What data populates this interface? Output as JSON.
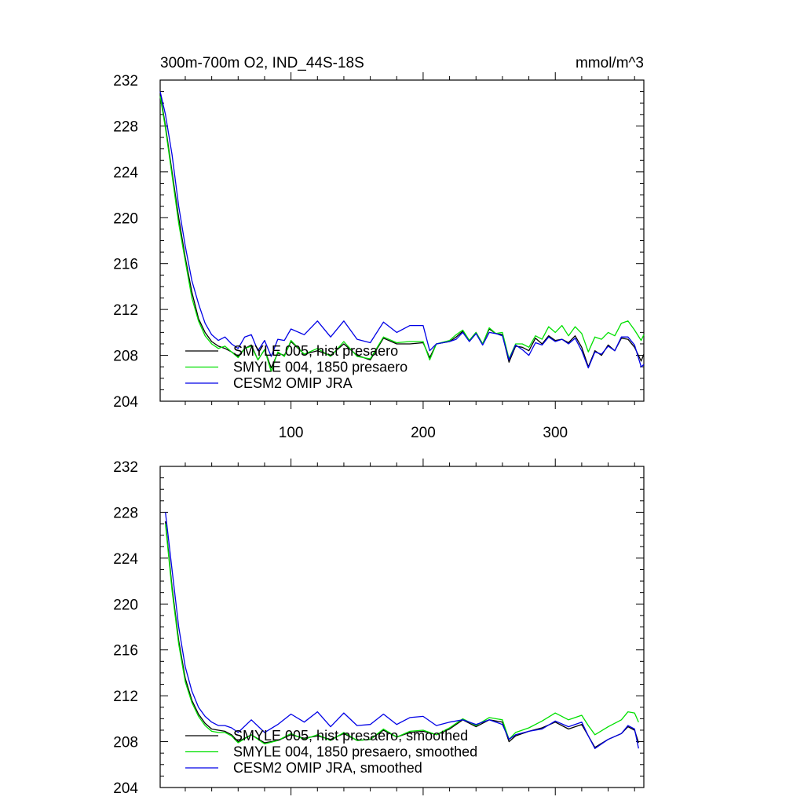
{
  "chart_data": [
    {
      "type": "line",
      "title": "300m-700m O2, IND_44S-18S",
      "units": "mmol/m^3",
      "xlabel": "",
      "ylabel": "",
      "xlim": [
        1,
        367
      ],
      "ylim": [
        204,
        232
      ],
      "x_ticks": [
        100,
        200,
        300
      ],
      "x_tick_labels": [
        "100",
        "200",
        "300"
      ],
      "y_ticks": [
        204,
        208,
        212,
        216,
        220,
        224,
        228,
        232
      ],
      "y_tick_labels": [
        "204",
        "208",
        "212",
        "216",
        "220",
        "224",
        "228",
        "232"
      ],
      "legend_position": "bottom-left",
      "series": [
        {
          "name": "SMYLE 005, hist presaero",
          "color": "#000000",
          "x": [
            1,
            5,
            10,
            15,
            20,
            25,
            30,
            35,
            40,
            45,
            50,
            55,
            60,
            65,
            70,
            75,
            80,
            85,
            90,
            95,
            100,
            110,
            120,
            130,
            140,
            150,
            160,
            170,
            180,
            190,
            200,
            205,
            210,
            220,
            225,
            230,
            235,
            240,
            245,
            250,
            255,
            260,
            265,
            270,
            275,
            280,
            285,
            290,
            295,
            300,
            305,
            310,
            315,
            320,
            325,
            330,
            335,
            340,
            345,
            350,
            355,
            360,
            365,
            367
          ],
          "y": [
            230.8,
            228.0,
            224.0,
            220.0,
            216.5,
            213.5,
            211.2,
            210.0,
            209.2,
            208.8,
            208.6,
            208.3,
            207.9,
            208.6,
            208.9,
            207.6,
            208.5,
            206.9,
            208.2,
            208.0,
            209.2,
            208.1,
            208.4,
            208.0,
            209.0,
            208.0,
            207.6,
            209.5,
            209.0,
            209.0,
            209.1,
            207.8,
            209.0,
            209.2,
            209.6,
            210.1,
            209.3,
            210.0,
            209.0,
            210.3,
            209.9,
            209.8,
            207.4,
            208.8,
            208.7,
            208.4,
            209.5,
            209.0,
            209.7,
            209.3,
            209.4,
            209.1,
            209.7,
            208.7,
            207.0,
            208.4,
            208.0,
            208.9,
            208.4,
            209.5,
            209.4,
            208.7,
            207.5,
            208.1
          ]
        },
        {
          "name": "SMYLE 004, 1850 presaero",
          "color": "#00e000",
          "x": [
            1,
            5,
            10,
            15,
            20,
            25,
            30,
            35,
            40,
            45,
            50,
            55,
            60,
            65,
            70,
            75,
            80,
            85,
            90,
            95,
            100,
            110,
            120,
            130,
            140,
            150,
            160,
            170,
            180,
            190,
            200,
            205,
            210,
            220,
            225,
            230,
            235,
            240,
            245,
            250,
            255,
            260,
            265,
            270,
            275,
            280,
            285,
            290,
            295,
            300,
            305,
            310,
            315,
            320,
            325,
            330,
            335,
            340,
            345,
            350,
            355,
            360,
            365,
            367
          ],
          "y": [
            230.6,
            227.8,
            223.7,
            219.5,
            216.2,
            213.0,
            211.0,
            209.7,
            209.0,
            208.6,
            208.8,
            208.3,
            207.8,
            208.6,
            208.8,
            207.6,
            208.5,
            206.6,
            208.3,
            207.9,
            209.3,
            208.1,
            208.6,
            207.9,
            209.2,
            207.9,
            207.7,
            209.6,
            209.1,
            209.2,
            209.2,
            207.6,
            209.0,
            209.3,
            209.8,
            210.2,
            209.3,
            210.0,
            209.0,
            210.4,
            209.9,
            210.0,
            207.7,
            209.0,
            209.0,
            208.7,
            209.7,
            209.4,
            210.5,
            210.0,
            210.6,
            209.7,
            210.5,
            209.9,
            208.3,
            209.6,
            209.4,
            210.0,
            209.7,
            210.8,
            211.0,
            210.2,
            209.3,
            209.8
          ]
        },
        {
          "name": "CESM2 OMIP JRA",
          "color": "#0000e6",
          "x": [
            1,
            5,
            10,
            15,
            20,
            25,
            30,
            35,
            40,
            45,
            50,
            55,
            60,
            65,
            70,
            75,
            80,
            85,
            90,
            95,
            100,
            110,
            120,
            130,
            140,
            150,
            160,
            170,
            180,
            190,
            200,
            205,
            210,
            220,
            225,
            230,
            235,
            240,
            245,
            250,
            255,
            260,
            265,
            270,
            275,
            280,
            285,
            290,
            295,
            300,
            305,
            310,
            315,
            320,
            325,
            330,
            335,
            340,
            345,
            350,
            355,
            360,
            365,
            367
          ],
          "y": [
            231.0,
            229.0,
            225.5,
            221.0,
            217.5,
            214.5,
            212.5,
            210.8,
            209.8,
            209.3,
            209.6,
            209.0,
            208.6,
            209.6,
            209.8,
            208.4,
            209.3,
            207.9,
            209.4,
            209.3,
            210.3,
            209.8,
            211.0,
            209.6,
            211.0,
            209.4,
            209.1,
            210.9,
            210.0,
            210.6,
            210.6,
            208.4,
            209.0,
            209.2,
            209.4,
            210.0,
            209.2,
            209.9,
            208.9,
            210.0,
            209.9,
            209.7,
            207.6,
            208.9,
            208.5,
            208.0,
            209.1,
            208.9,
            209.6,
            209.2,
            209.4,
            209.0,
            209.5,
            208.4,
            206.9,
            208.3,
            208.1,
            208.8,
            208.4,
            209.6,
            209.6,
            208.9,
            207.0,
            207.2
          ]
        }
      ]
    },
    {
      "type": "line",
      "title": "",
      "units": "",
      "xlabel": "",
      "ylabel": "",
      "xlim": [
        1,
        367
      ],
      "ylim": [
        204,
        232
      ],
      "x_ticks": [
        100,
        200,
        300
      ],
      "x_tick_labels": [],
      "y_ticks": [
        204,
        208,
        212,
        216,
        220,
        224,
        228,
        232
      ],
      "y_tick_labels": [
        "204",
        "208",
        "212",
        "216",
        "220",
        "224",
        "228",
        "232"
      ],
      "legend_position": "bottom-left",
      "series": [
        {
          "name": "SMYLE 005, hist presaero, smoothed",
          "color": "#000000",
          "x": [
            5,
            10,
            15,
            20,
            25,
            30,
            35,
            40,
            45,
            50,
            55,
            60,
            70,
            80,
            90,
            100,
            110,
            120,
            130,
            140,
            150,
            160,
            170,
            180,
            190,
            200,
            210,
            220,
            230,
            240,
            250,
            260,
            265,
            270,
            280,
            290,
            300,
            310,
            320,
            325,
            330,
            340,
            350,
            355,
            360,
            363
          ],
          "y": [
            227.2,
            221.5,
            216.8,
            213.5,
            211.6,
            210.4,
            209.6,
            209.1,
            209.0,
            208.9,
            208.6,
            208.0,
            208.6,
            207.9,
            208.1,
            208.6,
            208.3,
            208.5,
            208.2,
            208.7,
            208.1,
            208.2,
            209.0,
            208.4,
            208.8,
            208.9,
            208.6,
            209.1,
            209.9,
            209.3,
            209.9,
            209.7,
            208.0,
            208.5,
            208.9,
            209.2,
            209.7,
            209.1,
            209.5,
            208.5,
            207.5,
            208.2,
            208.7,
            209.3,
            209.0,
            207.9
          ]
        },
        {
          "name": "SMYLE 004, 1850 presaero, smoothed",
          "color": "#00e000",
          "x": [
            5,
            10,
            15,
            20,
            25,
            30,
            35,
            40,
            45,
            50,
            55,
            60,
            70,
            80,
            90,
            100,
            110,
            120,
            130,
            140,
            150,
            160,
            170,
            180,
            190,
            200,
            210,
            220,
            230,
            240,
            250,
            260,
            265,
            270,
            280,
            290,
            300,
            310,
            320,
            325,
            330,
            340,
            350,
            355,
            360,
            363
          ],
          "y": [
            227.0,
            221.2,
            216.5,
            213.2,
            211.4,
            210.2,
            209.4,
            208.9,
            208.8,
            208.8,
            208.5,
            207.9,
            208.6,
            207.8,
            208.1,
            208.7,
            208.2,
            208.6,
            208.1,
            208.8,
            208.1,
            208.2,
            209.1,
            208.4,
            208.9,
            209.0,
            208.6,
            209.2,
            210.0,
            209.4,
            210.1,
            209.9,
            208.2,
            208.8,
            209.2,
            209.8,
            210.5,
            209.9,
            210.3,
            209.4,
            208.6,
            209.3,
            209.9,
            210.6,
            210.5,
            209.7
          ]
        },
        {
          "name": "CESM2 OMIP JRA, smoothed",
          "color": "#0000e6",
          "x": [
            5,
            10,
            15,
            20,
            25,
            30,
            35,
            40,
            45,
            50,
            55,
            60,
            70,
            80,
            90,
            100,
            110,
            120,
            130,
            140,
            150,
            160,
            170,
            180,
            190,
            200,
            210,
            220,
            230,
            240,
            250,
            260,
            265,
            270,
            280,
            290,
            300,
            310,
            320,
            325,
            330,
            340,
            350,
            355,
            360,
            363
          ],
          "y": [
            228.0,
            223.0,
            218.0,
            214.5,
            212.4,
            211.0,
            210.2,
            209.7,
            209.4,
            209.4,
            209.2,
            208.8,
            209.9,
            208.8,
            209.5,
            210.4,
            209.7,
            210.6,
            209.3,
            210.5,
            209.4,
            209.5,
            210.4,
            209.5,
            210.1,
            210.2,
            209.4,
            209.7,
            209.9,
            209.5,
            209.9,
            209.5,
            208.2,
            208.6,
            208.9,
            209.1,
            209.8,
            209.3,
            209.7,
            208.5,
            207.4,
            208.2,
            208.7,
            209.4,
            209.1,
            207.4
          ]
        }
      ]
    }
  ]
}
